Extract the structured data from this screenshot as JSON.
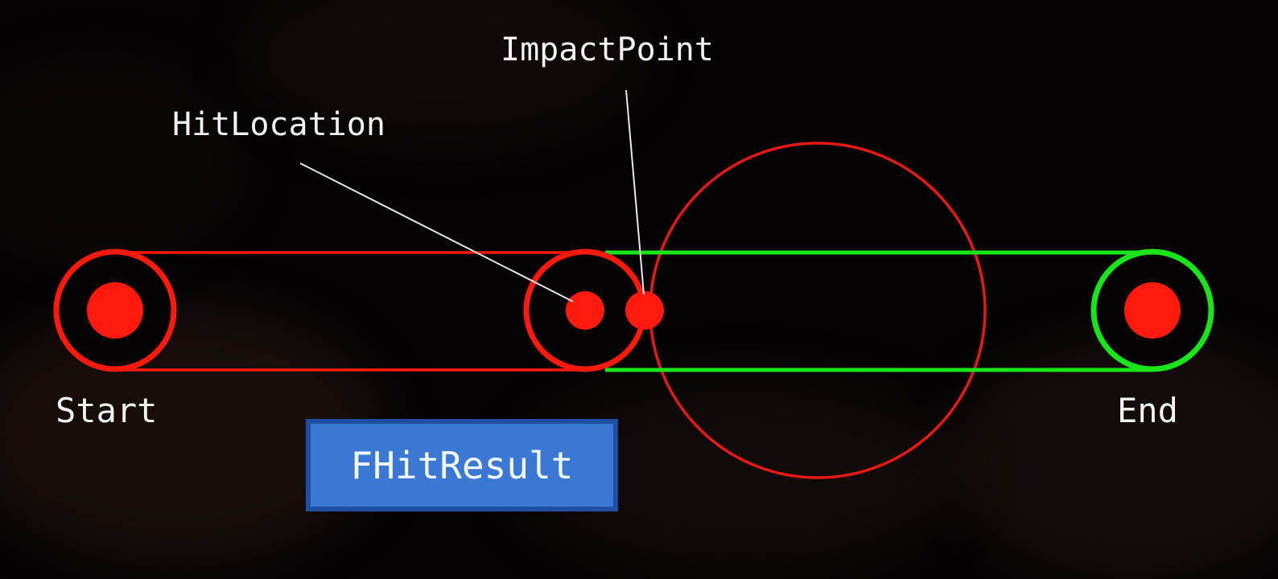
{
  "labels": {
    "impact_point": "ImpactPoint",
    "hit_location": "HitLocation",
    "start": "Start",
    "end": "End",
    "result": "FHitResult"
  },
  "colors": {
    "background": "#050304",
    "hit_trace": "#ff1a0d",
    "remaining_trace": "#19e619",
    "obstacle": "#e61a14",
    "pointer_line": "#e8e8e8",
    "result_box": "#3b78d4",
    "result_border": "#1f4fa0",
    "text": "#f2f2f2"
  }
}
